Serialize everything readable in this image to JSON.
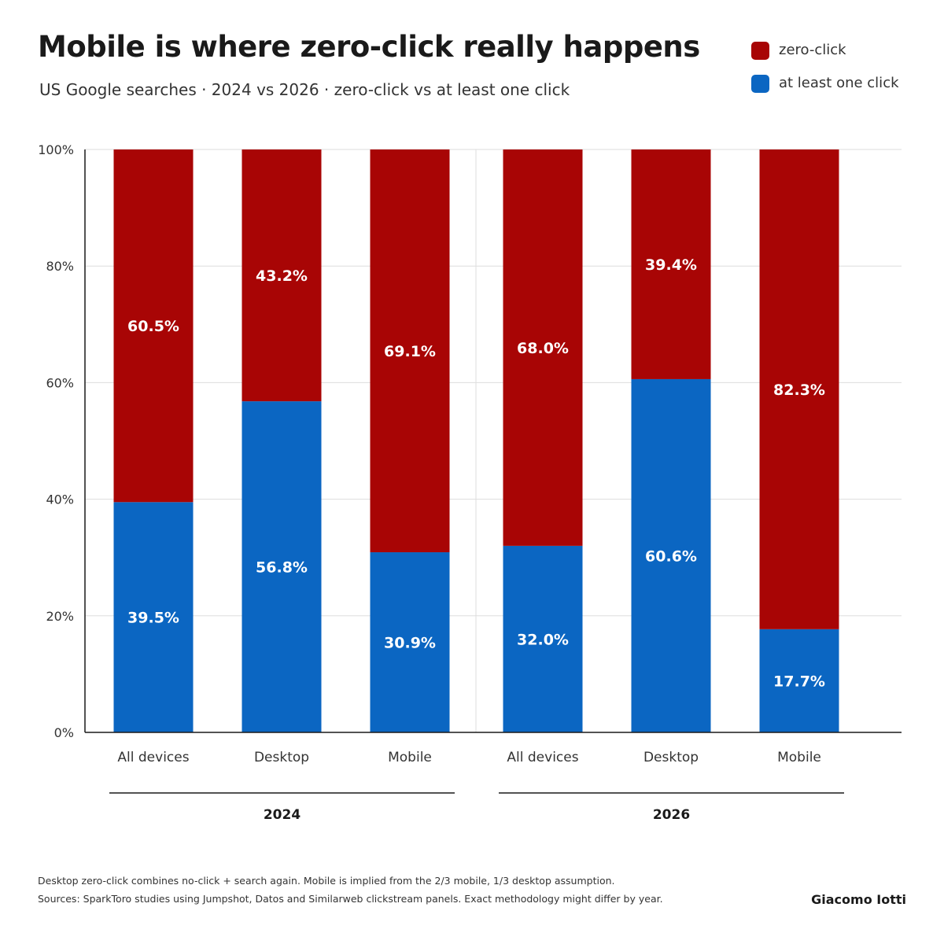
{
  "header": {
    "title": "Mobile is where zero-click really happens",
    "subtitle": "US Google searches · 2024 vs 2026 · zero-click vs at least one click"
  },
  "legend": [
    {
      "label": "zero-click",
      "color": "#a80505"
    },
    {
      "label": "at least one click",
      "color": "#0b66c2"
    }
  ],
  "chart_data": {
    "type": "bar",
    "stacked": true,
    "groups": [
      {
        "label": "2024",
        "categories": [
          "All devices",
          "Desktop",
          "Mobile"
        ]
      },
      {
        "label": "2026",
        "categories": [
          "All devices",
          "Desktop",
          "Mobile"
        ]
      }
    ],
    "series": [
      {
        "name": "at least one click",
        "color": "#0b66c2",
        "values": [
          39.5,
          56.8,
          30.9,
          32.0,
          60.6,
          17.7
        ]
      },
      {
        "name": "zero-click",
        "color": "#a80505",
        "values": [
          60.5,
          43.2,
          69.1,
          68.0,
          39.4,
          82.3
        ]
      }
    ],
    "data_labels": {
      "at least one click": [
        "39.5%",
        "56.8%",
        "30.9%",
        "32.0%",
        "60.6%",
        "17.7%"
      ],
      "zero-click": [
        "60.5%",
        "43.2%",
        "69.1%",
        "68.0%",
        "39.4%",
        "82.3%"
      ]
    },
    "y_ticks": [
      "0%",
      "20%",
      "40%",
      "60%",
      "80%",
      "100%"
    ],
    "ylim": [
      0,
      100
    ],
    "grid": true,
    "legend_position": "top-right"
  },
  "footer": {
    "note1": "Desktop zero-click combines no-click + search again. Mobile is implied from the 2/3 mobile, 1/3 desktop assumption.",
    "note2": "Sources: SparkToro studies using Jumpshot, Datos and Similarweb clickstream panels. Exact methodology might differ by year.",
    "author": "Giacomo Iotti"
  }
}
